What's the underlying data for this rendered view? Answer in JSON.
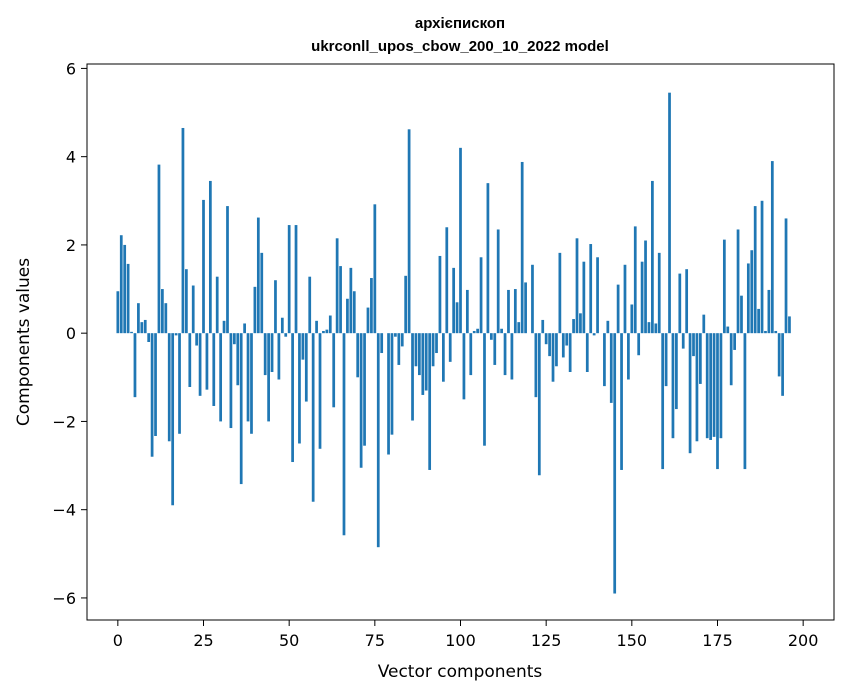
{
  "chart_data": {
    "type": "bar",
    "title": "архієпископ",
    "subtitle": "ukrconll_upos_cbow_200_10_2022 model",
    "xlabel": "Vector components",
    "ylabel": "Components values",
    "xlim": [
      -9,
      209
    ],
    "ylim": [
      -6.5,
      6.1
    ],
    "xticks": [
      0,
      25,
      50,
      75,
      100,
      125,
      150,
      175,
      200
    ],
    "yticks": [
      -6,
      -4,
      -2,
      0,
      2,
      4,
      6
    ],
    "xtick_labels": [
      "0",
      "25",
      "50",
      "75",
      "100",
      "125",
      "150",
      "175",
      "200"
    ],
    "ytick_labels": [
      "−6",
      "−4",
      "−2",
      "0",
      "2",
      "4",
      "6"
    ],
    "grid": false,
    "bar_color": "#1f77b4",
    "values": [
      0.95,
      2.22,
      2.0,
      1.57,
      0.03,
      -1.45,
      0.68,
      0.25,
      0.3,
      -0.2,
      -2.8,
      -2.33,
      3.82,
      1.0,
      0.68,
      -2.45,
      -3.9,
      -0.05,
      -2.28,
      4.65,
      1.45,
      -1.22,
      1.08,
      -0.28,
      -1.42,
      3.02,
      -1.28,
      3.45,
      -1.65,
      1.28,
      -2.0,
      0.28,
      2.88,
      -2.15,
      -0.25,
      -1.18,
      -3.42,
      0.22,
      -2.0,
      -2.28,
      1.05,
      2.62,
      1.82,
      -0.95,
      -2.0,
      -0.88,
      1.2,
      -1.05,
      0.35,
      -0.08,
      2.45,
      -2.92,
      2.45,
      -2.5,
      -0.6,
      -1.55,
      1.28,
      -3.82,
      0.28,
      -2.62,
      0.05,
      0.08,
      0.4,
      -1.68,
      2.15,
      1.52,
      -4.58,
      0.78,
      1.48,
      0.95,
      -1.0,
      -3.05,
      -2.55,
      0.58,
      1.25,
      2.92,
      -4.85,
      -0.45,
      0.0,
      -2.75,
      -2.3,
      -0.08,
      -0.72,
      -0.3,
      1.3,
      4.62,
      -1.98,
      -0.75,
      -0.95,
      -1.4,
      -1.3,
      -3.1,
      -0.75,
      -0.45,
      1.75,
      -1.1,
      2.4,
      -0.65,
      1.48,
      0.7,
      4.2,
      -1.5,
      0.98,
      -0.95,
      0.05,
      0.1,
      1.72,
      -2.55,
      3.4,
      -0.15,
      -0.72,
      2.35,
      0.1,
      -0.95,
      0.98,
      -1.05,
      1.0,
      0.25,
      3.88,
      1.15,
      0.0,
      1.55,
      -1.45,
      -3.22,
      0.3,
      -0.25,
      -0.52,
      -1.1,
      -0.75,
      1.82,
      -0.55,
      -0.28,
      -0.88,
      0.32,
      2.15,
      0.45,
      1.62,
      -0.88,
      2.02,
      -0.05,
      1.72,
      0.0,
      -1.2,
      0.28,
      -1.58,
      -5.9,
      1.1,
      -3.1,
      1.55,
      -1.05,
      0.65,
      2.42,
      -0.5,
      1.62,
      2.1,
      0.25,
      3.45,
      0.22,
      1.82,
      -3.08,
      -1.2,
      5.45,
      -2.38,
      -1.72,
      1.35,
      -0.35,
      1.45,
      -2.72,
      -0.52,
      -2.45,
      -1.15,
      0.42,
      -2.38,
      -2.42,
      -2.35,
      -3.08,
      -2.38,
      2.12,
      0.15,
      -1.18,
      -0.38,
      2.35,
      0.85,
      -3.08,
      1.58,
      1.88,
      2.88,
      0.55,
      3.0,
      0.05,
      0.98,
      3.9,
      0.05,
      -0.98,
      -1.42,
      2.6,
      0.38
    ]
  }
}
